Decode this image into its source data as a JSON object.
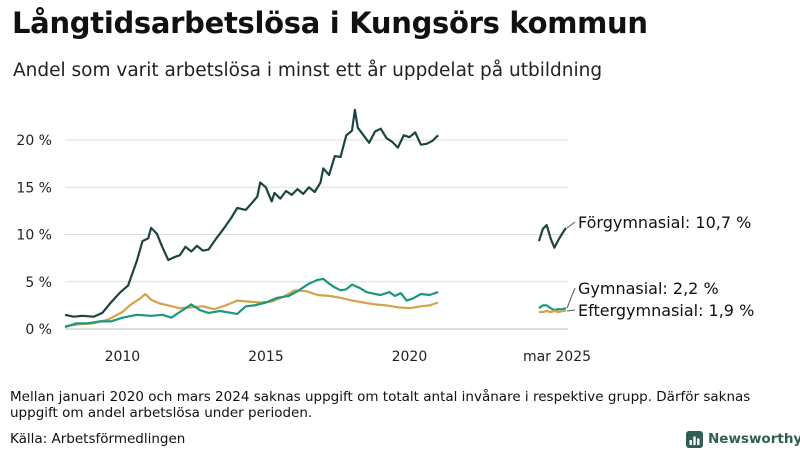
{
  "header": {
    "title": "Långtidsarbetslösa i Kungsörs kommun",
    "subtitle": "Andel som varit arbetslösa i minst ett år uppdelat på utbildning"
  },
  "footer": {
    "note": "Mellan januari 2020 och mars 2024 saknas uppgift om totalt antal invånare i respektive grupp. Därför saknas uppgift om andel arbetslösa under perioden.",
    "source": "Källa: Arbetsförmedlingen",
    "brand": "Newsworthy"
  },
  "chart_data": {
    "type": "line",
    "x_ticks": [
      "2010",
      "2015",
      "2020"
    ],
    "x_tick_values": [
      2010,
      2015,
      2020
    ],
    "inset_tick": "mar 2025",
    "y_ticks": [
      "0 %",
      "5 %",
      "10 %",
      "15 %",
      "20 %"
    ],
    "y_tick_values": [
      0,
      5,
      10,
      15,
      20
    ],
    "ylim": [
      0,
      24
    ],
    "xlim": [
      2008.0,
      2021.1
    ],
    "grid": "horizontal",
    "series": [
      {
        "name": "Förgymnasial",
        "color": "#1d4540",
        "end_label": "Förgymnasial: 10,7 %",
        "points": [
          [
            2008.0,
            1.5
          ],
          [
            2008.3,
            1.3
          ],
          [
            2008.6,
            1.4
          ],
          [
            2009.0,
            1.3
          ],
          [
            2009.3,
            1.7
          ],
          [
            2009.6,
            2.8
          ],
          [
            2009.9,
            3.8
          ],
          [
            2010.2,
            4.6
          ],
          [
            2010.5,
            7.2
          ],
          [
            2010.7,
            9.3
          ],
          [
            2010.9,
            9.6
          ],
          [
            2011.0,
            10.7
          ],
          [
            2011.2,
            10.1
          ],
          [
            2011.4,
            8.6
          ],
          [
            2011.6,
            7.3
          ],
          [
            2011.8,
            7.6
          ],
          [
            2012.0,
            7.8
          ],
          [
            2012.2,
            8.7
          ],
          [
            2012.4,
            8.2
          ],
          [
            2012.6,
            8.8
          ],
          [
            2012.8,
            8.3
          ],
          [
            2013.0,
            8.4
          ],
          [
            2013.3,
            9.7
          ],
          [
            2013.5,
            10.5
          ],
          [
            2013.8,
            11.8
          ],
          [
            2014.0,
            12.8
          ],
          [
            2014.3,
            12.6
          ],
          [
            2014.5,
            13.3
          ],
          [
            2014.7,
            14.0
          ],
          [
            2014.8,
            15.5
          ],
          [
            2015.0,
            15.0
          ],
          [
            2015.2,
            13.5
          ],
          [
            2015.3,
            14.4
          ],
          [
            2015.5,
            13.8
          ],
          [
            2015.7,
            14.6
          ],
          [
            2015.9,
            14.2
          ],
          [
            2016.1,
            14.8
          ],
          [
            2016.3,
            14.3
          ],
          [
            2016.5,
            15.0
          ],
          [
            2016.7,
            14.5
          ],
          [
            2016.9,
            15.5
          ],
          [
            2017.0,
            17.0
          ],
          [
            2017.2,
            16.3
          ],
          [
            2017.4,
            18.3
          ],
          [
            2017.6,
            18.2
          ],
          [
            2017.8,
            20.5
          ],
          [
            2018.0,
            21.0
          ],
          [
            2018.1,
            23.2
          ],
          [
            2018.2,
            21.3
          ],
          [
            2018.4,
            20.5
          ],
          [
            2018.6,
            19.7
          ],
          [
            2018.8,
            20.9
          ],
          [
            2019.0,
            21.2
          ],
          [
            2019.2,
            20.2
          ],
          [
            2019.4,
            19.8
          ],
          [
            2019.6,
            19.2
          ],
          [
            2019.8,
            20.5
          ],
          [
            2020.0,
            20.3
          ],
          [
            2020.2,
            20.8
          ],
          [
            2020.4,
            19.5
          ],
          [
            2020.6,
            19.6
          ],
          [
            2020.8,
            19.9
          ],
          [
            2021.0,
            20.5
          ]
        ]
      },
      {
        "name": "Gymnasial",
        "color": "#1a9780",
        "end_label": "Gymnasial:  2,2 %",
        "points": [
          [
            2008.0,
            0.2
          ],
          [
            2008.4,
            0.6
          ],
          [
            2008.8,
            0.6
          ],
          [
            2009.2,
            0.8
          ],
          [
            2009.6,
            0.8
          ],
          [
            2010.0,
            1.2
          ],
          [
            2010.5,
            1.5
          ],
          [
            2011.0,
            1.4
          ],
          [
            2011.4,
            1.5
          ],
          [
            2011.7,
            1.2
          ],
          [
            2012.0,
            1.8
          ],
          [
            2012.4,
            2.6
          ],
          [
            2012.7,
            2.0
          ],
          [
            2013.0,
            1.7
          ],
          [
            2013.4,
            1.9
          ],
          [
            2013.8,
            1.7
          ],
          [
            2014.0,
            1.6
          ],
          [
            2014.3,
            2.4
          ],
          [
            2014.6,
            2.5
          ],
          [
            2015.0,
            2.8
          ],
          [
            2015.4,
            3.3
          ],
          [
            2015.8,
            3.5
          ],
          [
            2016.1,
            4.0
          ],
          [
            2016.5,
            4.8
          ],
          [
            2016.8,
            5.2
          ],
          [
            2017.0,
            5.3
          ],
          [
            2017.2,
            4.8
          ],
          [
            2017.4,
            4.4
          ],
          [
            2017.6,
            4.1
          ],
          [
            2017.8,
            4.2
          ],
          [
            2018.0,
            4.7
          ],
          [
            2018.3,
            4.3
          ],
          [
            2018.5,
            3.9
          ],
          [
            2018.8,
            3.7
          ],
          [
            2019.0,
            3.6
          ],
          [
            2019.3,
            3.9
          ],
          [
            2019.5,
            3.5
          ],
          [
            2019.7,
            3.8
          ],
          [
            2019.9,
            3.0
          ],
          [
            2020.1,
            3.2
          ],
          [
            2020.4,
            3.7
          ],
          [
            2020.7,
            3.6
          ],
          [
            2021.0,
            3.9
          ]
        ]
      },
      {
        "name": "Eftergymnasial",
        "color": "#d4a24a",
        "end_label": "Eftergymnasial:  1,9 %",
        "points": [
          [
            2008.0,
            0.3
          ],
          [
            2008.5,
            0.5
          ],
          [
            2009.0,
            0.6
          ],
          [
            2009.5,
            1.0
          ],
          [
            2010.0,
            1.8
          ],
          [
            2010.3,
            2.6
          ],
          [
            2010.6,
            3.2
          ],
          [
            2010.8,
            3.7
          ],
          [
            2011.0,
            3.1
          ],
          [
            2011.3,
            2.7
          ],
          [
            2011.6,
            2.5
          ],
          [
            2012.0,
            2.2
          ],
          [
            2012.4,
            2.3
          ],
          [
            2012.8,
            2.4
          ],
          [
            2013.2,
            2.1
          ],
          [
            2013.6,
            2.5
          ],
          [
            2014.0,
            3.0
          ],
          [
            2014.4,
            2.9
          ],
          [
            2014.8,
            2.8
          ],
          [
            2015.2,
            2.9
          ],
          [
            2015.6,
            3.4
          ],
          [
            2016.0,
            4.1
          ],
          [
            2016.4,
            4.0
          ],
          [
            2016.8,
            3.6
          ],
          [
            2017.2,
            3.5
          ],
          [
            2017.6,
            3.3
          ],
          [
            2018.0,
            3.0
          ],
          [
            2018.4,
            2.8
          ],
          [
            2018.8,
            2.6
          ],
          [
            2019.2,
            2.5
          ],
          [
            2019.6,
            2.3
          ],
          [
            2020.0,
            2.2
          ],
          [
            2020.4,
            2.4
          ],
          [
            2020.7,
            2.5
          ],
          [
            2021.0,
            2.8
          ]
        ]
      }
    ],
    "inset": {
      "label": "mar 2025",
      "series": [
        {
          "name": "Förgymnasial",
          "values": [
            9.3,
            10.6,
            11.0,
            9.6,
            8.6,
            9.4,
            10.1,
            10.7
          ]
        },
        {
          "name": "Gymnasial",
          "values": [
            2.2,
            2.5,
            2.5,
            2.2,
            2.0,
            2.1,
            2.1,
            2.2
          ]
        },
        {
          "name": "Eftergymnasial",
          "values": [
            1.8,
            1.8,
            1.9,
            1.8,
            1.9,
            1.8,
            1.9,
            1.9
          ]
        }
      ]
    }
  }
}
